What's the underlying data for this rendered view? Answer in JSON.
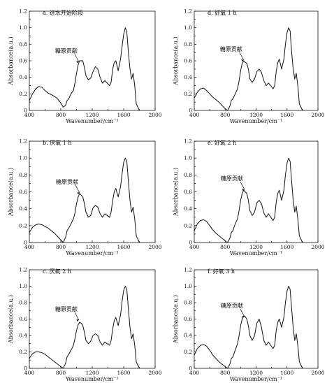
{
  "figure": {
    "panels": [
      {
        "label": "a. 进水开始阶段",
        "xlabel": "Wavenumber/cm⁻¹",
        "ylabel": "Absorbance(a.u.)",
        "annotation": "糖原贡献",
        "annotation_target": [
          1030,
          0.58
        ]
      },
      {
        "label": "d. 好氧 1 h",
        "xlabel": "Wavenumber/cm⁻¹",
        "ylabel": "Absorbance(a.u.)",
        "annotation": "糖原贡献",
        "annotation_target": [
          1040,
          0.6
        ]
      },
      {
        "label": "b. 厌氧 1 h",
        "xlabel": "Wavenumber/cm⁻¹",
        "ylabel": "Absorbance(a.u.)",
        "annotation": "糖原贡献",
        "annotation_target": [
          1040,
          0.58
        ]
      },
      {
        "label": "e. 好氧 2 h",
        "xlabel": "Wavenumber/cm⁻¹",
        "ylabel": "Absorbance(a.u.)",
        "annotation": "糖原贡献",
        "annotation_target": [
          1050,
          0.62
        ]
      },
      {
        "label": "c. 厌氧 2 h",
        "xlabel": "Wavenumber/cm⁻¹",
        "ylabel": "Absorbance(a.u.)",
        "annotation": "糖原贡献",
        "annotation_target": [
          1030,
          0.58
        ]
      },
      {
        "label": "f. 好氧 3 h",
        "xlabel": "Wavenumber/cm⁻¹",
        "ylabel": "Absorbance(a.u.)",
        "annotation": "糖原贡献",
        "annotation_target": [
          1050,
          0.62
        ]
      }
    ]
  },
  "chart_data": [
    {
      "type": "line",
      "title": "a. 进水开始阶段",
      "xlabel": "Wavenumber/cm⁻¹",
      "ylabel": "Absorbance(a.u.)",
      "xlim": [
        400,
        2000
      ],
      "ylim": [
        0,
        1.2
      ],
      "xticks": [
        400,
        800,
        1200,
        1600,
        2000
      ],
      "yticks": [
        0,
        0.2,
        0.4,
        0.6,
        0.8,
        1.0,
        1.2
      ],
      "grid": false,
      "series": [
        {
          "x": [
            400,
            440,
            480,
            520,
            560,
            600,
            640,
            680,
            720,
            760,
            800,
            830,
            860,
            880,
            900,
            930,
            960,
            980,
            1000,
            1020,
            1040,
            1060,
            1080,
            1100,
            1120,
            1150,
            1180,
            1210,
            1240,
            1270,
            1300,
            1330,
            1360,
            1390,
            1420,
            1440,
            1460,
            1480,
            1500,
            1530,
            1560,
            1580,
            1600,
            1620,
            1640,
            1660,
            1680,
            1700,
            1720,
            1740,
            1760,
            1800
          ],
          "y": [
            0.12,
            0.2,
            0.26,
            0.29,
            0.28,
            0.24,
            0.21,
            0.19,
            0.17,
            0.14,
            0.09,
            0.04,
            0.06,
            0.12,
            0.14,
            0.2,
            0.24,
            0.33,
            0.45,
            0.55,
            0.6,
            0.6,
            0.6,
            0.52,
            0.42,
            0.37,
            0.39,
            0.47,
            0.53,
            0.5,
            0.4,
            0.33,
            0.36,
            0.33,
            0.3,
            0.34,
            0.5,
            0.58,
            0.6,
            0.48,
            0.62,
            0.78,
            0.92,
            1.0,
            0.95,
            0.7,
            0.5,
            0.38,
            0.45,
            0.3,
            0.08,
            0.0
          ]
        }
      ]
    },
    {
      "type": "line",
      "title": "d. 好氧 1 h",
      "xlabel": "Wavenumber/cm⁻¹",
      "ylabel": "Absorbance(a.u.)",
      "xlim": [
        400,
        2000
      ],
      "ylim": [
        0,
        1.2
      ],
      "xticks": [
        400,
        800,
        1200,
        1600,
        2000
      ],
      "yticks": [
        0,
        0.2,
        0.4,
        0.6,
        0.8,
        1.0,
        1.2
      ],
      "grid": false,
      "series": [
        {
          "x": [
            400,
            440,
            480,
            520,
            560,
            600,
            640,
            680,
            720,
            760,
            800,
            830,
            860,
            880,
            900,
            930,
            960,
            980,
            1000,
            1020,
            1040,
            1060,
            1080,
            1100,
            1120,
            1150,
            1180,
            1210,
            1240,
            1270,
            1300,
            1330,
            1360,
            1390,
            1420,
            1440,
            1460,
            1480,
            1500,
            1530,
            1560,
            1580,
            1600,
            1620,
            1640,
            1660,
            1680,
            1700,
            1720,
            1740,
            1760,
            1800
          ],
          "y": [
            0.15,
            0.22,
            0.26,
            0.27,
            0.24,
            0.2,
            0.16,
            0.13,
            0.1,
            0.06,
            0.02,
            0.0,
            0.05,
            0.12,
            0.14,
            0.2,
            0.26,
            0.36,
            0.48,
            0.57,
            0.6,
            0.58,
            0.57,
            0.5,
            0.38,
            0.34,
            0.38,
            0.47,
            0.5,
            0.46,
            0.36,
            0.3,
            0.33,
            0.3,
            0.26,
            0.3,
            0.47,
            0.58,
            0.62,
            0.5,
            0.62,
            0.8,
            0.94,
            1.0,
            0.96,
            0.7,
            0.5,
            0.38,
            0.45,
            0.3,
            0.08,
            0.0
          ]
        }
      ]
    },
    {
      "type": "line",
      "title": "b. 厌氧 1 h",
      "xlabel": "Wavenumber/cm⁻¹",
      "ylabel": "Absorbance(a.u.)",
      "xlim": [
        400,
        2000
      ],
      "ylim": [
        0,
        1.2
      ],
      "xticks": [
        400,
        800,
        1200,
        1600,
        2000
      ],
      "yticks": [
        0,
        0.2,
        0.4,
        0.6,
        0.8,
        1.0,
        1.2
      ],
      "grid": false,
      "series": [
        {
          "x": [
            400,
            440,
            480,
            520,
            560,
            600,
            640,
            680,
            720,
            760,
            800,
            830,
            860,
            880,
            900,
            930,
            960,
            980,
            1000,
            1020,
            1040,
            1060,
            1080,
            1100,
            1120,
            1150,
            1180,
            1210,
            1240,
            1270,
            1300,
            1330,
            1360,
            1390,
            1420,
            1440,
            1460,
            1480,
            1500,
            1530,
            1560,
            1580,
            1600,
            1620,
            1640,
            1660,
            1680,
            1700,
            1720,
            1740,
            1760,
            1800
          ],
          "y": [
            0.12,
            0.18,
            0.21,
            0.22,
            0.21,
            0.19,
            0.17,
            0.14,
            0.11,
            0.07,
            0.03,
            0.0,
            0.06,
            0.14,
            0.17,
            0.22,
            0.28,
            0.35,
            0.46,
            0.54,
            0.58,
            0.56,
            0.54,
            0.46,
            0.36,
            0.3,
            0.32,
            0.41,
            0.44,
            0.42,
            0.34,
            0.3,
            0.34,
            0.32,
            0.3,
            0.36,
            0.5,
            0.6,
            0.64,
            0.54,
            0.66,
            0.82,
            0.95,
            1.0,
            0.96,
            0.72,
            0.5,
            0.36,
            0.42,
            0.28,
            0.08,
            0.0
          ]
        }
      ]
    },
    {
      "type": "line",
      "title": "e. 好氧 2 h",
      "xlabel": "Wavenumber/cm⁻¹",
      "ylabel": "Absorbance(a.u.)",
      "xlim": [
        400,
        2000
      ],
      "ylim": [
        0,
        1.2
      ],
      "xticks": [
        400,
        800,
        1200,
        1600,
        2000
      ],
      "yticks": [
        0,
        0.2,
        0.4,
        0.6,
        0.8,
        1.0,
        1.2
      ],
      "grid": false,
      "series": [
        {
          "x": [
            400,
            440,
            480,
            520,
            560,
            600,
            640,
            680,
            720,
            760,
            800,
            830,
            860,
            880,
            900,
            930,
            960,
            980,
            1000,
            1020,
            1040,
            1060,
            1080,
            1100,
            1120,
            1150,
            1180,
            1210,
            1240,
            1270,
            1300,
            1330,
            1360,
            1390,
            1420,
            1440,
            1460,
            1480,
            1500,
            1530,
            1560,
            1580,
            1600,
            1620,
            1640,
            1660,
            1680,
            1700,
            1720,
            1740,
            1760,
            1800
          ],
          "y": [
            0.14,
            0.22,
            0.26,
            0.27,
            0.25,
            0.2,
            0.15,
            0.11,
            0.08,
            0.05,
            0.02,
            0.0,
            0.05,
            0.12,
            0.14,
            0.22,
            0.28,
            0.38,
            0.5,
            0.58,
            0.62,
            0.6,
            0.58,
            0.5,
            0.38,
            0.32,
            0.36,
            0.47,
            0.5,
            0.46,
            0.35,
            0.3,
            0.34,
            0.3,
            0.26,
            0.3,
            0.48,
            0.58,
            0.62,
            0.5,
            0.62,
            0.8,
            0.94,
            1.0,
            0.96,
            0.72,
            0.5,
            0.36,
            0.43,
            0.28,
            0.08,
            0.0
          ]
        }
      ]
    },
    {
      "type": "line",
      "title": "c. 厌氧 2 h",
      "xlabel": "Wavenumber/cm⁻¹",
      "ylabel": "Absorbance(a.u.)",
      "xlim": [
        400,
        2000
      ],
      "ylim": [
        0,
        1.2
      ],
      "xticks": [
        400,
        800,
        1200,
        1600,
        2000
      ],
      "yticks": [
        0,
        0.2,
        0.4,
        0.6,
        0.8,
        1.0,
        1.2
      ],
      "grid": false,
      "series": [
        {
          "x": [
            400,
            440,
            480,
            520,
            560,
            600,
            640,
            680,
            720,
            760,
            800,
            830,
            860,
            880,
            900,
            930,
            960,
            980,
            1000,
            1020,
            1040,
            1060,
            1080,
            1100,
            1120,
            1150,
            1180,
            1210,
            1240,
            1270,
            1300,
            1330,
            1360,
            1390,
            1420,
            1440,
            1460,
            1480,
            1500,
            1530,
            1560,
            1580,
            1600,
            1620,
            1640,
            1660,
            1680,
            1700,
            1720,
            1740,
            1760,
            1800
          ],
          "y": [
            0.12,
            0.18,
            0.2,
            0.2,
            0.19,
            0.17,
            0.14,
            0.11,
            0.08,
            0.05,
            0.02,
            0.0,
            0.06,
            0.14,
            0.17,
            0.22,
            0.28,
            0.36,
            0.46,
            0.53,
            0.56,
            0.55,
            0.52,
            0.44,
            0.34,
            0.3,
            0.33,
            0.4,
            0.42,
            0.4,
            0.32,
            0.28,
            0.32,
            0.3,
            0.28,
            0.34,
            0.48,
            0.58,
            0.62,
            0.52,
            0.65,
            0.82,
            0.95,
            1.0,
            0.96,
            0.72,
            0.5,
            0.36,
            0.42,
            0.28,
            0.08,
            0.0
          ]
        }
      ]
    },
    {
      "type": "line",
      "title": "f. 好氧 3 h",
      "xlabel": "Wavenumber/cm⁻¹",
      "ylabel": "Absorbance(a.u.)",
      "xlim": [
        400,
        2000
      ],
      "ylim": [
        0,
        1.2
      ],
      "xticks": [
        400,
        800,
        1200,
        1600,
        2000
      ],
      "yticks": [
        0,
        0.2,
        0.4,
        0.6,
        0.8,
        1.0,
        1.2
      ],
      "grid": false,
      "series": [
        {
          "x": [
            400,
            440,
            480,
            520,
            560,
            600,
            640,
            680,
            720,
            760,
            800,
            830,
            860,
            880,
            900,
            930,
            960,
            980,
            1000,
            1020,
            1040,
            1060,
            1080,
            1100,
            1120,
            1150,
            1180,
            1210,
            1240,
            1270,
            1300,
            1330,
            1360,
            1390,
            1420,
            1440,
            1460,
            1480,
            1500,
            1530,
            1560,
            1580,
            1600,
            1620,
            1640,
            1660,
            1680,
            1700,
            1720,
            1740,
            1760,
            1800
          ],
          "y": [
            0.16,
            0.24,
            0.28,
            0.29,
            0.27,
            0.22,
            0.16,
            0.12,
            0.08,
            0.05,
            0.02,
            0.0,
            0.05,
            0.12,
            0.14,
            0.22,
            0.3,
            0.4,
            0.52,
            0.6,
            0.64,
            0.63,
            0.6,
            0.52,
            0.4,
            0.34,
            0.4,
            0.55,
            0.6,
            0.5,
            0.34,
            0.28,
            0.32,
            0.28,
            0.24,
            0.28,
            0.46,
            0.56,
            0.6,
            0.5,
            0.62,
            0.8,
            0.94,
            1.0,
            0.96,
            0.72,
            0.5,
            0.34,
            0.42,
            0.28,
            0.08,
            0.0
          ]
        }
      ]
    }
  ]
}
